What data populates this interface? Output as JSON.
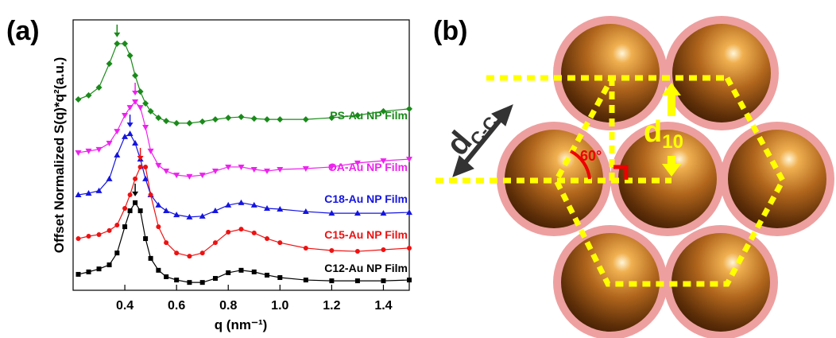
{
  "chart_data": {
    "type": "scatter",
    "panel_label": "(a)",
    "x_label": "q (nm⁻¹)",
    "y_label": "Offset Normalized S(q)*q²(a.u.)",
    "xlim": [
      0.2,
      1.5
    ],
    "ylim": [
      0,
      10
    ],
    "xticks": [
      0.4,
      0.6,
      0.8,
      {
        "value": 1,
        "label": "1.0"
      },
      1.2,
      1.4
    ],
    "x": [
      0.22,
      0.26,
      0.3,
      0.34,
      0.37,
      0.4,
      0.42,
      0.44,
      0.46,
      0.48,
      0.5,
      0.53,
      0.56,
      0.6,
      0.65,
      0.7,
      0.75,
      0.8,
      0.85,
      0.9,
      0.95,
      1.0,
      1.1,
      1.2,
      1.3,
      1.4,
      1.5
    ],
    "series": [
      {
        "name": "PS-Au NP Film",
        "color": "#1a8a1a",
        "marker": "diamond",
        "values": [
          7.06,
          7.21,
          7.5,
          8.38,
          9.12,
          9.12,
          8.68,
          7.94,
          7.35,
          6.91,
          6.62,
          6.38,
          6.26,
          6.18,
          6.18,
          6.24,
          6.32,
          6.38,
          6.41,
          6.35,
          6.32,
          6.32,
          6.32,
          6.38,
          6.47,
          6.62,
          6.71
        ]
      },
      {
        "name": "OA-Au NP Film",
        "color": "#ee22ee",
        "marker": "triangle-down",
        "values": [
          5.09,
          5.15,
          5.21,
          5.44,
          5.88,
          6.47,
          6.76,
          6.97,
          6.76,
          6.03,
          5.15,
          4.62,
          4.41,
          4.26,
          4.21,
          4.26,
          4.41,
          4.56,
          4.56,
          4.47,
          4.41,
          4.47,
          4.5,
          4.56,
          4.71,
          4.79,
          4.85
        ]
      },
      {
        "name": "C18-Au NP Film",
        "color": "#1515e0",
        "marker": "triangle-up",
        "values": [
          3.53,
          3.59,
          3.68,
          4.12,
          5.0,
          5.68,
          5.79,
          5.44,
          4.85,
          4.12,
          3.53,
          3.15,
          2.94,
          2.79,
          2.71,
          2.74,
          2.94,
          3.15,
          3.24,
          3.15,
          3.03,
          3.0,
          2.91,
          2.85,
          2.85,
          2.85,
          2.88
        ]
      },
      {
        "name": "C15-Au NP Film",
        "color": "#ee1111",
        "marker": "circle",
        "values": [
          1.91,
          2.0,
          2.06,
          2.21,
          2.41,
          3.03,
          3.53,
          4.12,
          4.56,
          4.56,
          3.53,
          2.35,
          1.76,
          1.38,
          1.26,
          1.38,
          1.76,
          2.15,
          2.26,
          2.12,
          1.91,
          1.76,
          1.56,
          1.47,
          1.44,
          1.5,
          1.56
        ]
      },
      {
        "name": "C12-Au NP Film",
        "color": "#000000",
        "marker": "square",
        "values": [
          0.59,
          0.68,
          0.79,
          0.94,
          1.38,
          2.35,
          2.94,
          3.24,
          2.94,
          1.91,
          1.18,
          0.74,
          0.5,
          0.38,
          0.29,
          0.29,
          0.44,
          0.65,
          0.74,
          0.68,
          0.56,
          0.47,
          0.38,
          0.35,
          0.35,
          0.35,
          0.38
        ]
      }
    ]
  },
  "diagram": {
    "panel_label": "(b)",
    "d_cc": {
      "main": "d",
      "sub": "C-C"
    },
    "d10": {
      "main": "d",
      "sub": "10"
    },
    "angle": "60°"
  }
}
